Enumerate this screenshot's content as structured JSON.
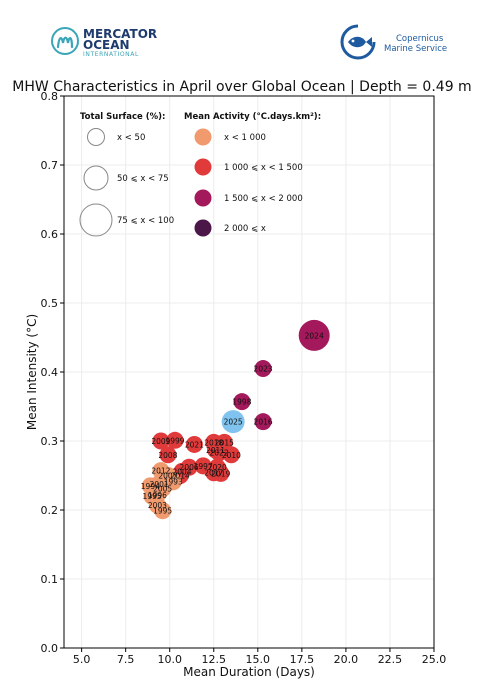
{
  "header": {
    "left_logo": {
      "line1": "MERCATOR",
      "line2": "OCEAN",
      "line3": "INTERNATIONAL",
      "icon": "mercator-m-logo-icon"
    },
    "right_logo": {
      "line1": "Copernicus",
      "line2": "Marine Service",
      "icon": "copernicus-fish-logo-icon"
    }
  },
  "chart_data": {
    "type": "scatter",
    "title": "MHW Characteristics in April over Global Ocean | Depth = 0.49 m",
    "xlabel": "Mean Duration (Days)",
    "ylabel": "Mean Intensity (°C)",
    "xlim": [
      4,
      25
    ],
    "ylim": [
      0.0,
      0.8
    ],
    "xticks": [
      "5.0",
      "7.5",
      "10.0",
      "12.5",
      "15.0",
      "17.5",
      "20.0",
      "22.5",
      "25.0"
    ],
    "yticks": [
      "0.0",
      "0.1",
      "0.2",
      "0.3",
      "0.4",
      "0.5",
      "0.6",
      "0.7",
      "0.8"
    ],
    "grid": true,
    "legend_size": {
      "title": "Total Surface (%):",
      "entries": [
        {
          "label": "x < 50",
          "size": "small"
        },
        {
          "label": "50 ⩽ x < 75",
          "size": "medium"
        },
        {
          "label": "75 ⩽ x < 100",
          "size": "large"
        }
      ]
    },
    "legend_color": {
      "title": "Mean Activity (°C.days.km²):",
      "entries": [
        {
          "label": "x < 1 000",
          "color": "#F09A6E"
        },
        {
          "label": "1 000 ⩽ x < 1 500",
          "color": "#E13A3A"
        },
        {
          "label": "1 500 ⩽ x < 2 000",
          "color": "#A3195B"
        },
        {
          "label": "2 000 ⩽ x",
          "color": "#4A1748"
        }
      ]
    },
    "colors": {
      "c1": "#F09A6E",
      "c2": "#E13A3A",
      "c3": "#A3195B",
      "c4": "#4A1748",
      "highlight": "#7FC3EE"
    },
    "points": [
      {
        "year": "2024",
        "x": 18.2,
        "y": 0.453,
        "color": "c3",
        "size": "large"
      },
      {
        "year": "2023",
        "x": 15.3,
        "y": 0.405,
        "color": "c3",
        "size": "small"
      },
      {
        "year": "1998",
        "x": 14.1,
        "y": 0.357,
        "color": "c3",
        "size": "small"
      },
      {
        "year": "2016",
        "x": 15.3,
        "y": 0.328,
        "color": "c3",
        "size": "small"
      },
      {
        "year": "2025",
        "x": 13.6,
        "y": 0.328,
        "color": "highlight",
        "size": "medium"
      },
      {
        "year": "2009",
        "x": 9.5,
        "y": 0.3,
        "color": "c2",
        "size": "small"
      },
      {
        "year": "1999",
        "x": 10.3,
        "y": 0.301,
        "color": "c2",
        "size": "small"
      },
      {
        "year": "2024b",
        "label": "2021",
        "x": 11.4,
        "y": 0.295,
        "color": "c2",
        "size": "small"
      },
      {
        "year": "2018",
        "x": 12.5,
        "y": 0.298,
        "color": "c2",
        "size": "small"
      },
      {
        "year": "2015",
        "x": 13.1,
        "y": 0.298,
        "color": "c2",
        "size": "small"
      },
      {
        "year": "2011",
        "x": 12.6,
        "y": 0.287,
        "color": "c2",
        "size": "small"
      },
      {
        "year": "2022",
        "x": 12.8,
        "y": 0.283,
        "color": "c2",
        "size": "small"
      },
      {
        "year": "2010",
        "x": 13.5,
        "y": 0.28,
        "color": "c2",
        "size": "small"
      },
      {
        "year": "2008",
        "x": 9.9,
        "y": 0.28,
        "color": "c2",
        "size": "small"
      },
      {
        "year": "1997",
        "x": 11.9,
        "y": 0.264,
        "color": "c2",
        "size": "small"
      },
      {
        "year": "2020",
        "x": 12.7,
        "y": 0.262,
        "color": "c2",
        "size": "small"
      },
      {
        "year": "2006",
        "x": 11.1,
        "y": 0.262,
        "color": "c2",
        "size": "small"
      },
      {
        "year": "2004",
        "x": 10.7,
        "y": 0.256,
        "color": "c2",
        "size": "small"
      },
      {
        "year": "2014",
        "x": 10.6,
        "y": 0.25,
        "color": "c2",
        "size": "small"
      },
      {
        "year": "2019",
        "x": 12.9,
        "y": 0.253,
        "color": "c2",
        "size": "small"
      },
      {
        "year": "2017",
        "x": 12.5,
        "y": 0.254,
        "color": "c2",
        "size": "small"
      },
      {
        "year": "2012",
        "x": 9.5,
        "y": 0.257,
        "color": "c1",
        "size": "small"
      },
      {
        "year": "2007",
        "x": 9.9,
        "y": 0.25,
        "color": "c1",
        "size": "small"
      },
      {
        "year": "1993",
        "x": 10.2,
        "y": 0.241,
        "color": "c1",
        "size": "small"
      },
      {
        "year": "2001",
        "x": 9.4,
        "y": 0.238,
        "color": "c1",
        "size": "small"
      },
      {
        "year": "2005",
        "x": 9.6,
        "y": 0.231,
        "color": "c1",
        "size": "small"
      },
      {
        "year": "1994",
        "x": 8.9,
        "y": 0.235,
        "color": "c1",
        "size": "small"
      },
      {
        "year": "1995",
        "x": 9.0,
        "y": 0.22,
        "color": "c1",
        "size": "small"
      },
      {
        "year": "1996",
        "x": 9.3,
        "y": 0.222,
        "color": "c1",
        "size": "small"
      },
      {
        "year": "2003",
        "x": 9.3,
        "y": 0.207,
        "color": "c1",
        "size": "small"
      },
      {
        "year": "1995b",
        "label": "1995",
        "x": 9.6,
        "y": 0.199,
        "color": "c1",
        "size": "small"
      }
    ]
  }
}
